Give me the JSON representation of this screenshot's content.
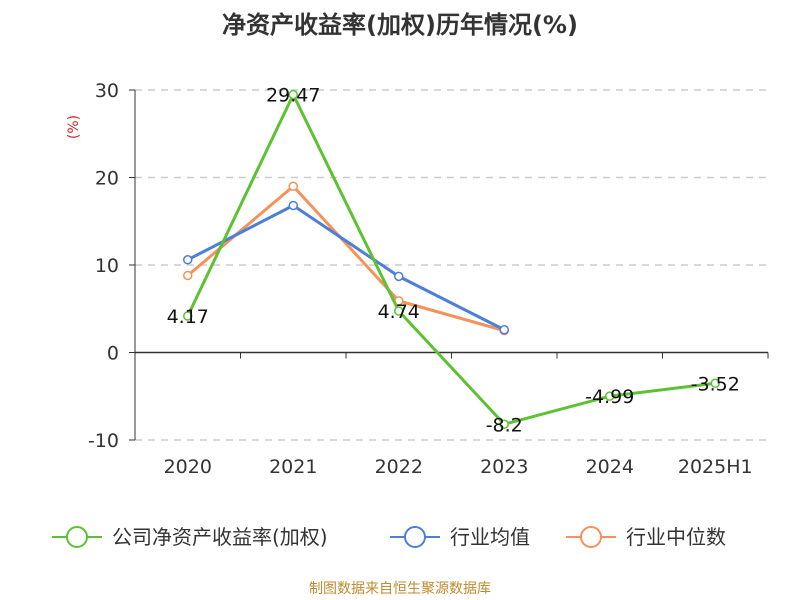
{
  "chart_data": {
    "type": "line",
    "title": "净资产收益率(加权)历年情况(%)",
    "ylabel": "(%)",
    "xlabel": "",
    "categories": [
      "2020",
      "2021",
      "2022",
      "2023",
      "2024",
      "2025H1"
    ],
    "ylim": [
      -10,
      30
    ],
    "yticks": [
      30,
      20,
      10,
      0,
      -10
    ],
    "grid": true,
    "legend_position": "bottom",
    "series": [
      {
        "name": "公司净资产收益率(加权)",
        "color": "#5cc232",
        "values": [
          4.17,
          29.47,
          4.74,
          -8.2,
          -4.99,
          -3.52
        ],
        "labels": [
          "4.17",
          "29.47",
          "4.74",
          "-8.2",
          "-4.99",
          "-3.52"
        ]
      },
      {
        "name": "行业均值",
        "color": "#4d7fd8",
        "values": [
          10.6,
          16.8,
          8.7,
          2.6,
          null,
          null
        ]
      },
      {
        "name": "行业中位数",
        "color": "#f5925a",
        "values": [
          8.8,
          19.0,
          5.9,
          2.5,
          null,
          null
        ]
      }
    ]
  },
  "footer": {
    "source": "制图数据来自恒生聚源数据库"
  }
}
